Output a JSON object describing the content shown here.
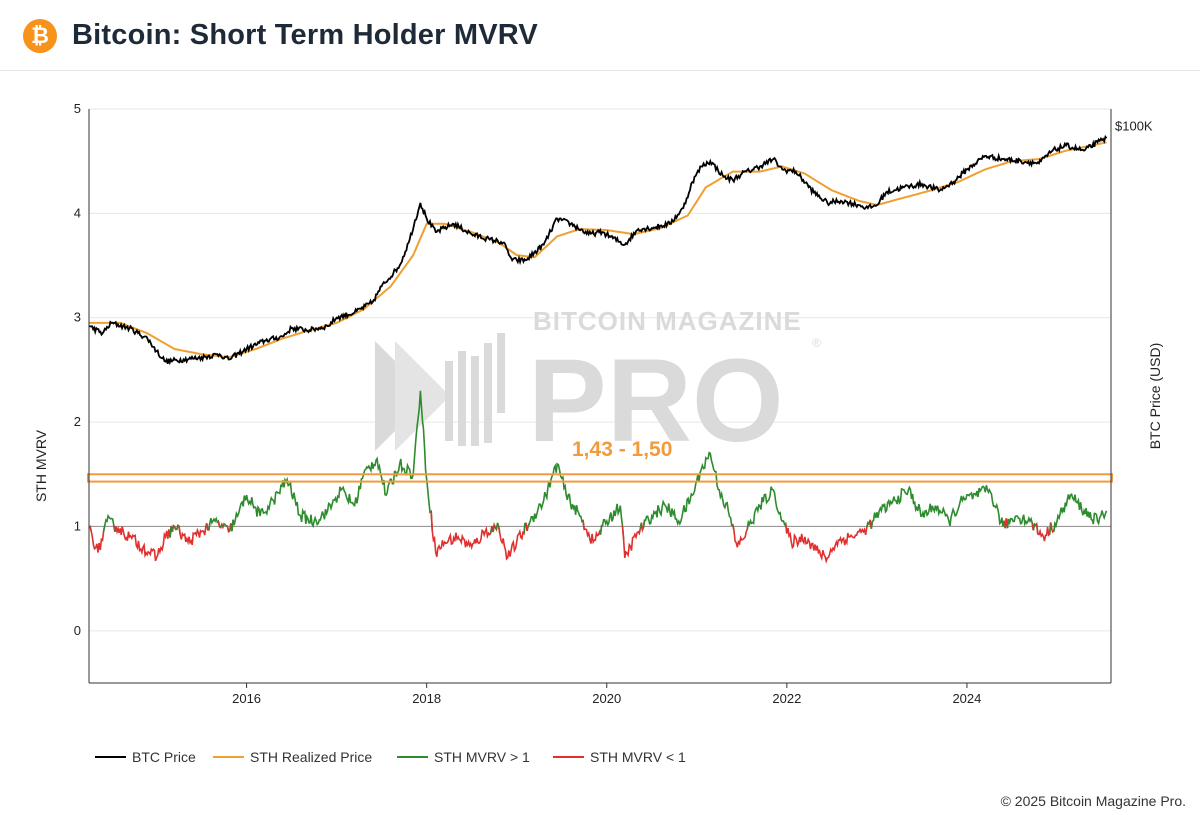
{
  "header": {
    "logo_symbol": "₿",
    "title": "Bitcoin: Short Term Holder MVRV"
  },
  "footer": {
    "copyright": "© 2025 Bitcoin Magazine Pro."
  },
  "watermark": {
    "top": "BITCOIN MAGAZINE",
    "main": "PRO",
    "mark": "®"
  },
  "annotation": {
    "label": "1,43 - 1,50",
    "band": [
      1.43,
      1.5
    ],
    "color": "#f39a3c"
  },
  "colors": {
    "btc_price": "#000000",
    "realized_price": "#f0a030",
    "mvrv_above": "#2e8b2e",
    "mvrv_below": "#e03030",
    "grid": "#e6e6e6",
    "baseline": "#999999"
  },
  "chart_data": {
    "type": "line",
    "title": "Bitcoin: Short Term Holder MVRV",
    "ylabel": "STH MVRV",
    "y2label": "BTC Price (USD)",
    "ylim": [
      -0.5,
      5
    ],
    "yticks": [
      "0",
      "1",
      "2",
      "3",
      "4",
      "5"
    ],
    "xlim": [
      2014.25,
      2025.6
    ],
    "xticks": [
      "2016",
      "2018",
      "2020",
      "2022",
      "2024"
    ],
    "right_tick_label": "$100K",
    "right_tick_value": 4.83,
    "reference_line": 1,
    "legend": [
      "BTC Price",
      "STH Realized Price",
      "STH MVRV > 1",
      "STH MVRV < 1"
    ],
    "series": [
      {
        "name": "BTC Price",
        "x": [
          2014.25,
          2014.4,
          2014.5,
          2014.7,
          2014.9,
          2015.0,
          2015.1,
          2015.3,
          2015.5,
          2015.7,
          2015.8,
          2016.0,
          2016.2,
          2016.4,
          2016.5,
          2016.7,
          2016.9,
          2017.0,
          2017.2,
          2017.4,
          2017.5,
          2017.7,
          2017.8,
          2017.93,
          2018.0,
          2018.1,
          2018.3,
          2018.5,
          2018.7,
          2018.85,
          2018.95,
          2019.1,
          2019.3,
          2019.45,
          2019.6,
          2019.8,
          2019.95,
          2020.2,
          2020.35,
          2020.5,
          2020.7,
          2020.85,
          2020.95,
          2021.05,
          2021.15,
          2021.3,
          2021.4,
          2021.5,
          2021.7,
          2021.85,
          2021.95,
          2022.1,
          2022.3,
          2022.45,
          2022.6,
          2022.8,
          2022.9,
          2023.0,
          2023.1,
          2023.3,
          2023.5,
          2023.7,
          2023.85,
          2024.0,
          2024.2,
          2024.4,
          2024.6,
          2024.8,
          2024.95,
          2025.1,
          2025.3,
          2025.45,
          2025.55
        ],
        "values": [
          2.92,
          2.85,
          2.95,
          2.9,
          2.8,
          2.68,
          2.58,
          2.6,
          2.62,
          2.65,
          2.6,
          2.7,
          2.78,
          2.82,
          2.9,
          2.88,
          2.92,
          3.0,
          3.05,
          3.15,
          3.3,
          3.5,
          3.72,
          4.1,
          3.95,
          3.82,
          3.9,
          3.8,
          3.75,
          3.72,
          3.55,
          3.55,
          3.7,
          3.95,
          3.9,
          3.8,
          3.82,
          3.7,
          3.85,
          3.86,
          3.9,
          4.05,
          4.3,
          4.45,
          4.5,
          4.35,
          4.32,
          4.38,
          4.45,
          4.52,
          4.42,
          4.4,
          4.2,
          4.1,
          4.12,
          4.08,
          4.05,
          4.08,
          4.2,
          4.25,
          4.28,
          4.22,
          4.3,
          4.42,
          4.55,
          4.52,
          4.5,
          4.48,
          4.6,
          4.65,
          4.6,
          4.68,
          4.72
        ]
      },
      {
        "name": "STH Realized Price",
        "x": [
          2014.25,
          2014.6,
          2014.9,
          2015.2,
          2015.5,
          2015.8,
          2016.1,
          2016.4,
          2016.7,
          2017.0,
          2017.3,
          2017.6,
          2017.85,
          2018.0,
          2018.2,
          2018.5,
          2018.8,
          2019.0,
          2019.2,
          2019.45,
          2019.7,
          2020.0,
          2020.3,
          2020.6,
          2020.9,
          2021.1,
          2021.4,
          2021.7,
          2021.95,
          2022.2,
          2022.5,
          2022.8,
          2023.0,
          2023.3,
          2023.6,
          2023.9,
          2024.2,
          2024.5,
          2024.8,
          2025.1,
          2025.55
        ],
        "values": [
          2.95,
          2.95,
          2.85,
          2.7,
          2.65,
          2.62,
          2.7,
          2.8,
          2.88,
          2.95,
          3.08,
          3.3,
          3.6,
          3.9,
          3.9,
          3.82,
          3.72,
          3.6,
          3.58,
          3.78,
          3.85,
          3.84,
          3.8,
          3.86,
          3.98,
          4.25,
          4.4,
          4.4,
          4.45,
          4.38,
          4.22,
          4.12,
          4.08,
          4.15,
          4.22,
          4.3,
          4.42,
          4.5,
          4.52,
          4.6,
          4.68
        ]
      },
      {
        "name": "STH MVRV",
        "x": [
          2014.25,
          2014.35,
          2014.45,
          2014.55,
          2014.7,
          2014.85,
          2015.0,
          2015.1,
          2015.2,
          2015.35,
          2015.5,
          2015.65,
          2015.8,
          2015.9,
          2016.0,
          2016.15,
          2016.3,
          2016.45,
          2016.6,
          2016.75,
          2016.9,
          2017.05,
          2017.2,
          2017.3,
          2017.45,
          2017.55,
          2017.7,
          2017.85,
          2017.93,
          2018.0,
          2018.1,
          2018.2,
          2018.35,
          2018.5,
          2018.65,
          2018.8,
          2018.9,
          2019.0,
          2019.15,
          2019.3,
          2019.45,
          2019.55,
          2019.7,
          2019.85,
          2020.0,
          2020.15,
          2020.2,
          2020.35,
          2020.5,
          2020.65,
          2020.8,
          2020.95,
          2021.05,
          2021.15,
          2021.25,
          2021.35,
          2021.45,
          2021.55,
          2021.7,
          2021.85,
          2021.95,
          2022.05,
          2022.2,
          2022.35,
          2022.45,
          2022.55,
          2022.7,
          2022.85,
          2022.95,
          2023.05,
          2023.2,
          2023.35,
          2023.5,
          2023.65,
          2023.8,
          2023.95,
          2024.1,
          2024.25,
          2024.4,
          2024.55,
          2024.7,
          2024.85,
          2025.0,
          2025.15,
          2025.3,
          2025.45,
          2025.55
        ],
        "values": [
          1.0,
          0.75,
          1.05,
          1.0,
          0.9,
          0.8,
          0.7,
          0.9,
          1.0,
          0.85,
          0.95,
          1.05,
          0.95,
          1.1,
          1.3,
          1.1,
          1.25,
          1.45,
          1.1,
          1.05,
          1.15,
          1.35,
          1.2,
          1.5,
          1.65,
          1.3,
          1.6,
          1.5,
          2.3,
          1.45,
          0.75,
          0.85,
          0.9,
          0.8,
          0.95,
          1.0,
          0.7,
          0.85,
          1.05,
          1.25,
          1.6,
          1.3,
          1.1,
          0.85,
          1.05,
          1.2,
          0.7,
          0.95,
          1.1,
          1.2,
          1.05,
          1.3,
          1.55,
          1.7,
          1.35,
          1.15,
          0.8,
          0.95,
          1.2,
          1.35,
          1.05,
          0.85,
          0.9,
          0.75,
          0.7,
          0.85,
          0.9,
          0.95,
          1.05,
          1.15,
          1.25,
          1.35,
          1.1,
          1.2,
          1.05,
          1.25,
          1.3,
          1.35,
          1.0,
          1.1,
          1.05,
          0.9,
          1.05,
          1.3,
          1.15,
          1.05,
          1.15
        ]
      }
    ]
  }
}
